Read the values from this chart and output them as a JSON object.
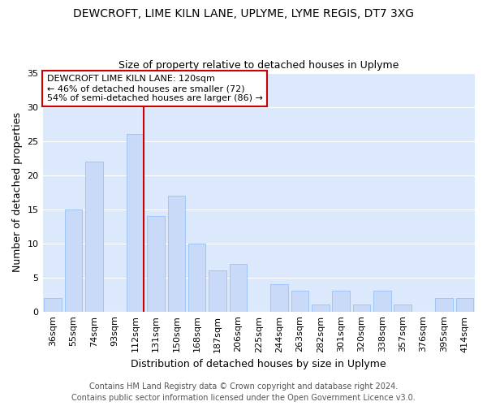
{
  "title": "DEWCROFT, LIME KILN LANE, UPLYME, LYME REGIS, DT7 3XG",
  "subtitle": "Size of property relative to detached houses in Uplyme",
  "xlabel": "Distribution of detached houses by size in Uplyme",
  "ylabel": "Number of detached properties",
  "categories": [
    "36sqm",
    "55sqm",
    "74sqm",
    "93sqm",
    "112sqm",
    "131sqm",
    "150sqm",
    "168sqm",
    "187sqm",
    "206sqm",
    "225sqm",
    "244sqm",
    "263sqm",
    "282sqm",
    "301sqm",
    "320sqm",
    "338sqm",
    "357sqm",
    "376sqm",
    "395sqm",
    "414sqm"
  ],
  "values": [
    2,
    15,
    22,
    0,
    26,
    14,
    17,
    10,
    6,
    7,
    0,
    4,
    3,
    1,
    3,
    1,
    3,
    1,
    0,
    2,
    2
  ],
  "bar_color": "#c9daf8",
  "bar_edge_color": "#9fc5f8",
  "reference_line_x_category": "131sqm",
  "reference_line_color": "#cc0000",
  "annotation_title": "DEWCROFT LIME KILN LANE: 120sqm",
  "annotation_line1": "← 46% of detached houses are smaller (72)",
  "annotation_line2": "54% of semi-detached houses are larger (86) →",
  "annotation_box_facecolor": "#ffffff",
  "annotation_box_edgecolor": "#cc0000",
  "ylim": [
    0,
    35
  ],
  "yticks": [
    0,
    5,
    10,
    15,
    20,
    25,
    30,
    35
  ],
  "footer1": "Contains HM Land Registry data © Crown copyright and database right 2024.",
  "footer2": "Contains public sector information licensed under the Open Government Licence v3.0.",
  "fig_facecolor": "#ffffff",
  "plot_facecolor": "#dce9fc",
  "grid_color": "#ffffff",
  "title_fontsize": 10,
  "subtitle_fontsize": 9,
  "axis_label_fontsize": 9,
  "tick_fontsize": 8,
  "annotation_fontsize": 8,
  "footer_fontsize": 7
}
